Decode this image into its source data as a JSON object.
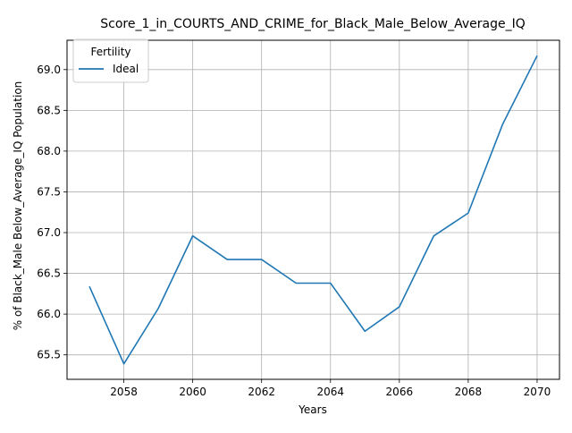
{
  "chart_data": {
    "type": "line",
    "title": "Score_1_in_COURTS_AND_CRIME_for_Black_Male_Below_Average_IQ",
    "xlabel": "Years",
    "ylabel": "% of Black_Male Below_Average_IQ Population",
    "x": [
      2057,
      2058,
      2059,
      2060,
      2061,
      2062,
      2063,
      2064,
      2065,
      2066,
      2067,
      2068,
      2069,
      2070
    ],
    "series": [
      {
        "name": "Ideal",
        "color": "#1f77b4",
        "values": [
          66.34,
          65.39,
          66.07,
          66.96,
          66.67,
          66.67,
          66.38,
          66.38,
          65.79,
          66.09,
          66.96,
          67.24,
          68.33,
          69.17
        ]
      }
    ],
    "xlim": [
      2056.35,
      2070.65
    ],
    "ylim": [
      65.2,
      69.36
    ],
    "xticks": [
      "2058",
      "2060",
      "2062",
      "2064",
      "2066",
      "2068",
      "2070"
    ],
    "yticks": [
      "65.5",
      "66.0",
      "66.5",
      "67.0",
      "67.5",
      "68.0",
      "68.5",
      "69.0"
    ],
    "grid": true,
    "legend": {
      "title": "Fertility",
      "placement": "top-left"
    }
  }
}
